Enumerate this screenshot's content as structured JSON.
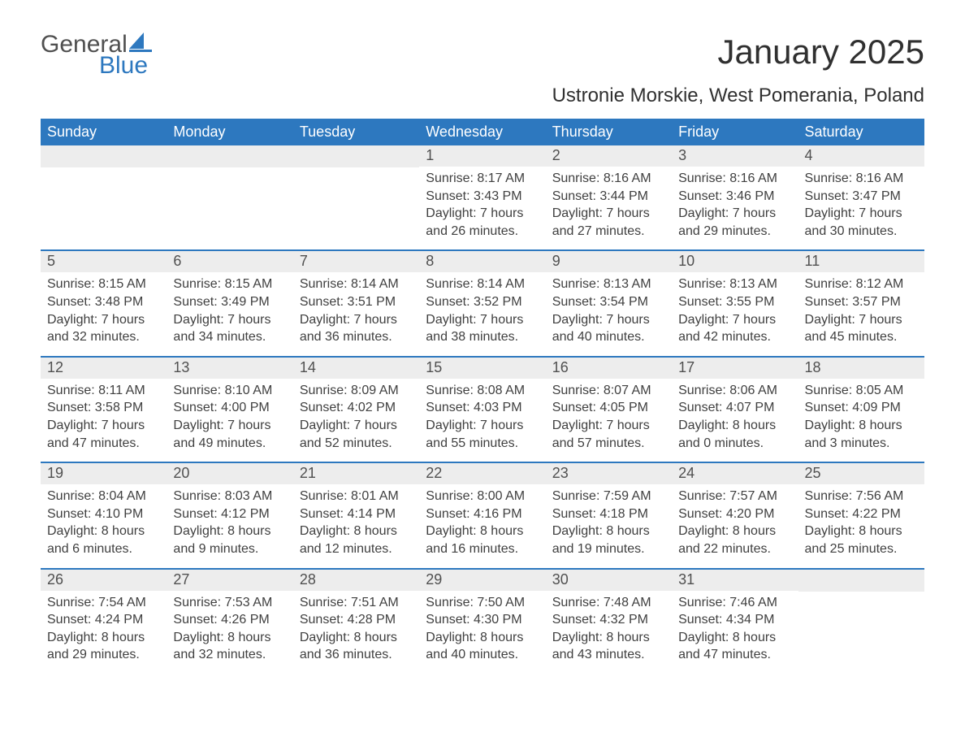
{
  "brand": {
    "word1": "General",
    "word2": "Blue",
    "sail_color": "#2d78bf"
  },
  "header": {
    "title": "January 2025",
    "subtitle": "Ustronie Morskie, West Pomerania, Poland"
  },
  "colors": {
    "header_bg": "#2d78bf",
    "header_text": "#ffffff",
    "daynum_bg": "#ededed",
    "text": "#404040",
    "page_bg": "#ffffff"
  },
  "typography": {
    "title_fontsize": 42,
    "subtitle_fontsize": 24,
    "weekday_fontsize": 18,
    "daynum_fontsize": 18,
    "body_fontsize": 16,
    "font_family": "Arial"
  },
  "weekdays": [
    "Sunday",
    "Monday",
    "Tuesday",
    "Wednesday",
    "Thursday",
    "Friday",
    "Saturday"
  ],
  "weeks": [
    [
      null,
      null,
      null,
      {
        "n": "1",
        "sunrise": "Sunrise: 8:17 AM",
        "sunset": "Sunset: 3:43 PM",
        "d1": "Daylight: 7 hours",
        "d2": "and 26 minutes."
      },
      {
        "n": "2",
        "sunrise": "Sunrise: 8:16 AM",
        "sunset": "Sunset: 3:44 PM",
        "d1": "Daylight: 7 hours",
        "d2": "and 27 minutes."
      },
      {
        "n": "3",
        "sunrise": "Sunrise: 8:16 AM",
        "sunset": "Sunset: 3:46 PM",
        "d1": "Daylight: 7 hours",
        "d2": "and 29 minutes."
      },
      {
        "n": "4",
        "sunrise": "Sunrise: 8:16 AM",
        "sunset": "Sunset: 3:47 PM",
        "d1": "Daylight: 7 hours",
        "d2": "and 30 minutes."
      }
    ],
    [
      {
        "n": "5",
        "sunrise": "Sunrise: 8:15 AM",
        "sunset": "Sunset: 3:48 PM",
        "d1": "Daylight: 7 hours",
        "d2": "and 32 minutes."
      },
      {
        "n": "6",
        "sunrise": "Sunrise: 8:15 AM",
        "sunset": "Sunset: 3:49 PM",
        "d1": "Daylight: 7 hours",
        "d2": "and 34 minutes."
      },
      {
        "n": "7",
        "sunrise": "Sunrise: 8:14 AM",
        "sunset": "Sunset: 3:51 PM",
        "d1": "Daylight: 7 hours",
        "d2": "and 36 minutes."
      },
      {
        "n": "8",
        "sunrise": "Sunrise: 8:14 AM",
        "sunset": "Sunset: 3:52 PM",
        "d1": "Daylight: 7 hours",
        "d2": "and 38 minutes."
      },
      {
        "n": "9",
        "sunrise": "Sunrise: 8:13 AM",
        "sunset": "Sunset: 3:54 PM",
        "d1": "Daylight: 7 hours",
        "d2": "and 40 minutes."
      },
      {
        "n": "10",
        "sunrise": "Sunrise: 8:13 AM",
        "sunset": "Sunset: 3:55 PM",
        "d1": "Daylight: 7 hours",
        "d2": "and 42 minutes."
      },
      {
        "n": "11",
        "sunrise": "Sunrise: 8:12 AM",
        "sunset": "Sunset: 3:57 PM",
        "d1": "Daylight: 7 hours",
        "d2": "and 45 minutes."
      }
    ],
    [
      {
        "n": "12",
        "sunrise": "Sunrise: 8:11 AM",
        "sunset": "Sunset: 3:58 PM",
        "d1": "Daylight: 7 hours",
        "d2": "and 47 minutes."
      },
      {
        "n": "13",
        "sunrise": "Sunrise: 8:10 AM",
        "sunset": "Sunset: 4:00 PM",
        "d1": "Daylight: 7 hours",
        "d2": "and 49 minutes."
      },
      {
        "n": "14",
        "sunrise": "Sunrise: 8:09 AM",
        "sunset": "Sunset: 4:02 PM",
        "d1": "Daylight: 7 hours",
        "d2": "and 52 minutes."
      },
      {
        "n": "15",
        "sunrise": "Sunrise: 8:08 AM",
        "sunset": "Sunset: 4:03 PM",
        "d1": "Daylight: 7 hours",
        "d2": "and 55 minutes."
      },
      {
        "n": "16",
        "sunrise": "Sunrise: 8:07 AM",
        "sunset": "Sunset: 4:05 PM",
        "d1": "Daylight: 7 hours",
        "d2": "and 57 minutes."
      },
      {
        "n": "17",
        "sunrise": "Sunrise: 8:06 AM",
        "sunset": "Sunset: 4:07 PM",
        "d1": "Daylight: 8 hours",
        "d2": "and 0 minutes."
      },
      {
        "n": "18",
        "sunrise": "Sunrise: 8:05 AM",
        "sunset": "Sunset: 4:09 PM",
        "d1": "Daylight: 8 hours",
        "d2": "and 3 minutes."
      }
    ],
    [
      {
        "n": "19",
        "sunrise": "Sunrise: 8:04 AM",
        "sunset": "Sunset: 4:10 PM",
        "d1": "Daylight: 8 hours",
        "d2": "and 6 minutes."
      },
      {
        "n": "20",
        "sunrise": "Sunrise: 8:03 AM",
        "sunset": "Sunset: 4:12 PM",
        "d1": "Daylight: 8 hours",
        "d2": "and 9 minutes."
      },
      {
        "n": "21",
        "sunrise": "Sunrise: 8:01 AM",
        "sunset": "Sunset: 4:14 PM",
        "d1": "Daylight: 8 hours",
        "d2": "and 12 minutes."
      },
      {
        "n": "22",
        "sunrise": "Sunrise: 8:00 AM",
        "sunset": "Sunset: 4:16 PM",
        "d1": "Daylight: 8 hours",
        "d2": "and 16 minutes."
      },
      {
        "n": "23",
        "sunrise": "Sunrise: 7:59 AM",
        "sunset": "Sunset: 4:18 PM",
        "d1": "Daylight: 8 hours",
        "d2": "and 19 minutes."
      },
      {
        "n": "24",
        "sunrise": "Sunrise: 7:57 AM",
        "sunset": "Sunset: 4:20 PM",
        "d1": "Daylight: 8 hours",
        "d2": "and 22 minutes."
      },
      {
        "n": "25",
        "sunrise": "Sunrise: 7:56 AM",
        "sunset": "Sunset: 4:22 PM",
        "d1": "Daylight: 8 hours",
        "d2": "and 25 minutes."
      }
    ],
    [
      {
        "n": "26",
        "sunrise": "Sunrise: 7:54 AM",
        "sunset": "Sunset: 4:24 PM",
        "d1": "Daylight: 8 hours",
        "d2": "and 29 minutes."
      },
      {
        "n": "27",
        "sunrise": "Sunrise: 7:53 AM",
        "sunset": "Sunset: 4:26 PM",
        "d1": "Daylight: 8 hours",
        "d2": "and 32 minutes."
      },
      {
        "n": "28",
        "sunrise": "Sunrise: 7:51 AM",
        "sunset": "Sunset: 4:28 PM",
        "d1": "Daylight: 8 hours",
        "d2": "and 36 minutes."
      },
      {
        "n": "29",
        "sunrise": "Sunrise: 7:50 AM",
        "sunset": "Sunset: 4:30 PM",
        "d1": "Daylight: 8 hours",
        "d2": "and 40 minutes."
      },
      {
        "n": "30",
        "sunrise": "Sunrise: 7:48 AM",
        "sunset": "Sunset: 4:32 PM",
        "d1": "Daylight: 8 hours",
        "d2": "and 43 minutes."
      },
      {
        "n": "31",
        "sunrise": "Sunrise: 7:46 AM",
        "sunset": "Sunset: 4:34 PM",
        "d1": "Daylight: 8 hours",
        "d2": "and 47 minutes."
      },
      null
    ]
  ]
}
